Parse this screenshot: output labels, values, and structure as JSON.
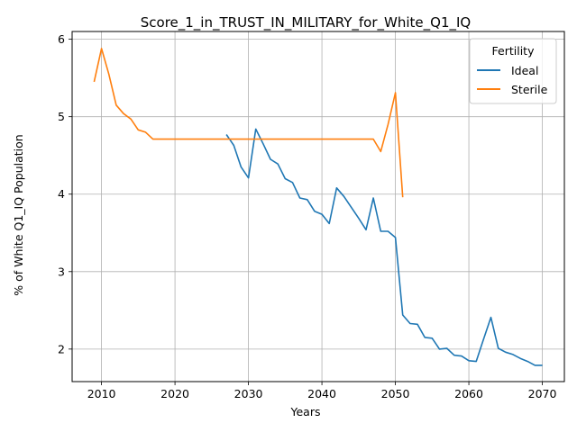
{
  "chart_data": {
    "type": "line",
    "title": "Score_1_in_TRUST_IN_MILITARY_for_White_Q1_IQ",
    "xlabel": "Years",
    "ylabel": "% of White Q1_IQ Population",
    "xlim": [
      2006,
      2073
    ],
    "ylim": [
      1.58,
      6.1
    ],
    "xticks": [
      2010,
      2020,
      2030,
      2040,
      2050,
      2060,
      2070
    ],
    "yticks": [
      2,
      3,
      4,
      5,
      6
    ],
    "grid": true,
    "legend": {
      "title": "Fertility",
      "placement": "top-right"
    },
    "series": [
      {
        "name": "Ideal",
        "color": "#1f77b4",
        "x": [
          2027,
          2028,
          2029,
          2030,
          2031,
          2032,
          2033,
          2034,
          2035,
          2036,
          2037,
          2038,
          2039,
          2040,
          2041,
          2042,
          2043,
          2044,
          2045,
          2046,
          2047,
          2048,
          2049,
          2050,
          2051,
          2052,
          2053,
          2054,
          2055,
          2056,
          2057,
          2058,
          2059,
          2060,
          2061,
          2062,
          2063,
          2064,
          2065,
          2066,
          2067,
          2068,
          2069,
          2070
        ],
        "values": [
          4.77,
          4.63,
          4.35,
          4.21,
          4.84,
          4.65,
          4.45,
          4.39,
          4.2,
          4.15,
          3.95,
          3.93,
          3.78,
          3.74,
          3.62,
          4.08,
          3.97,
          3.83,
          3.69,
          3.54,
          3.95,
          3.52,
          3.52,
          3.44,
          2.44,
          2.33,
          2.32,
          2.15,
          2.14,
          2.0,
          2.01,
          1.92,
          1.91,
          1.85,
          1.84,
          2.13,
          2.41,
          2.01,
          1.96,
          1.93,
          1.88,
          1.84,
          1.79,
          1.79
        ]
      },
      {
        "name": "Sterile",
        "color": "#ff7f0e",
        "x": [
          2009,
          2010,
          2011,
          2012,
          2013,
          2014,
          2015,
          2016,
          2017,
          2018,
          2019,
          2020,
          2021,
          2022,
          2023,
          2024,
          2025,
          2026,
          2027,
          2028,
          2029,
          2030,
          2031,
          2032,
          2033,
          2034,
          2035,
          2036,
          2037,
          2038,
          2039,
          2040,
          2041,
          2042,
          2043,
          2044,
          2045,
          2046,
          2047,
          2048,
          2049,
          2050,
          2051
        ],
        "values": [
          5.45,
          5.88,
          5.55,
          5.15,
          5.04,
          4.97,
          4.83,
          4.8,
          4.71,
          4.71,
          4.71,
          4.71,
          4.71,
          4.71,
          4.71,
          4.71,
          4.71,
          4.71,
          4.71,
          4.71,
          4.71,
          4.71,
          4.71,
          4.71,
          4.71,
          4.71,
          4.71,
          4.71,
          4.71,
          4.71,
          4.71,
          4.71,
          4.71,
          4.71,
          4.71,
          4.71,
          4.71,
          4.71,
          4.71,
          4.55,
          4.9,
          5.31,
          3.96
        ]
      }
    ]
  }
}
